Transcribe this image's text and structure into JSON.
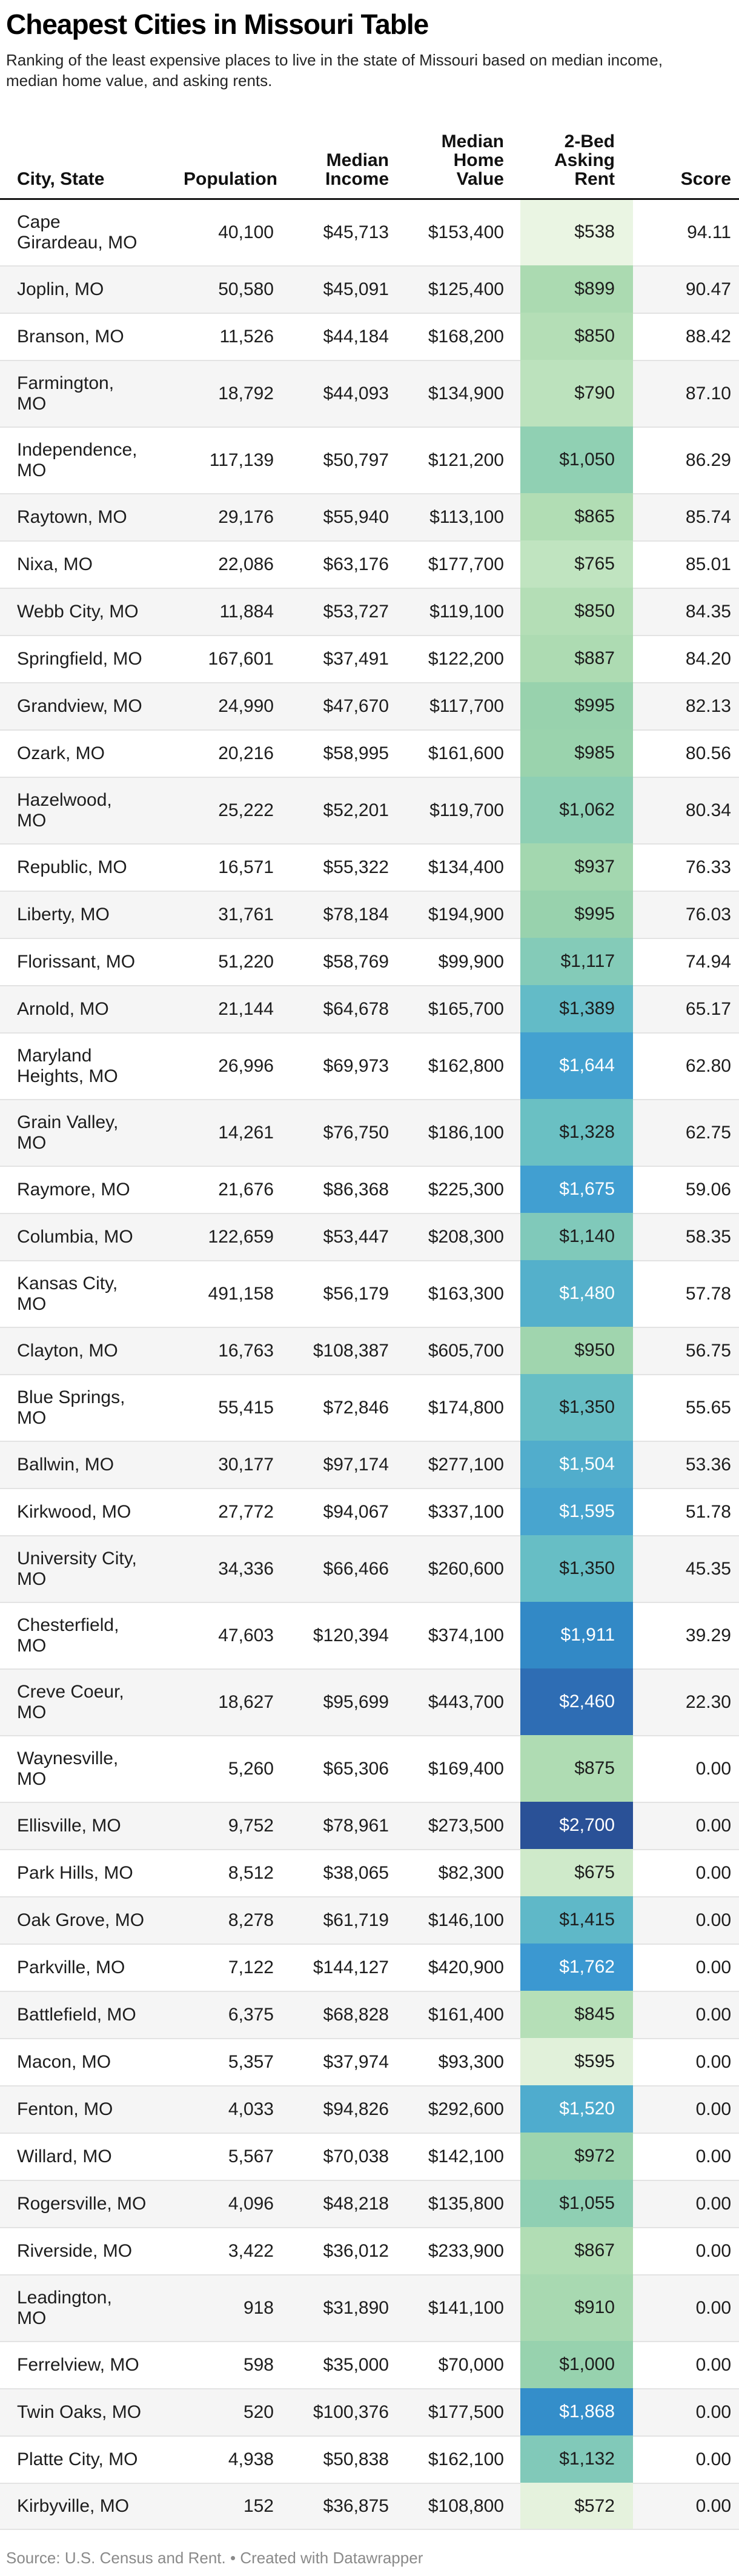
{
  "title": "Cheapest Cities in Missouri Table",
  "subtitle": "Ranking of the least expensive places to live in the state of Missouri based on median income,\nmedian home value, and asking rents.",
  "table": {
    "headers": [
      "City, State",
      "Population",
      "Median\nIncome",
      "Median\nHome\nValue",
      "2-Bed\nAsking\nRent",
      "Score"
    ]
  },
  "chart_data": {
    "type": "table",
    "columns": [
      "City, State",
      "Population",
      "Median Income",
      "Median Home Value",
      "2-Bed Asking Rent",
      "Score"
    ],
    "rent_color_scale": {
      "description": "2-Bed Asking Rent column shaded from pale green (low rent) to dark blue (high rent)",
      "low_anchor": {
        "value": "$538",
        "color": "#eaf5e3"
      },
      "mid_anchor": {
        "value": "$1,350",
        "color": "#67bec5"
      },
      "high_anchor": {
        "value": "$2,700",
        "color": "#2a5197"
      }
    },
    "rows": [
      {
        "city": "Cape\nGirardeau, MO",
        "population": "40,100",
        "median_income": "$45,713",
        "median_home_value": "$153,400",
        "rent": "$538",
        "score": "94.11",
        "rent_color": "#eaf5e3",
        "rent_text": "dark"
      },
      {
        "city": "Joplin, MO",
        "population": "50,580",
        "median_income": "$45,091",
        "median_home_value": "$125,400",
        "rent": "$899",
        "score": "90.47",
        "rent_color": "#abdab1",
        "rent_text": "dark"
      },
      {
        "city": "Branson, MO",
        "population": "11,526",
        "median_income": "$44,184",
        "median_home_value": "$168,200",
        "rent": "$850",
        "score": "88.42",
        "rent_color": "#b4deb6",
        "rent_text": "dark"
      },
      {
        "city": "Farmington,\nMO",
        "population": "18,792",
        "median_income": "$44,093",
        "median_home_value": "$134,900",
        "rent": "$790",
        "score": "87.10",
        "rent_color": "#bce2bd",
        "rent_text": "dark"
      },
      {
        "city": "Independence,\nMO",
        "population": "117,139",
        "median_income": "$50,797",
        "median_home_value": "$121,200",
        "rent": "$1,050",
        "score": "86.29",
        "rent_color": "#90d0b3",
        "rent_text": "dark"
      },
      {
        "city": "Raytown, MO",
        "population": "29,176",
        "median_income": "$55,940",
        "median_home_value": "$113,100",
        "rent": "$865",
        "score": "85.74",
        "rent_color": "#b1ddb4",
        "rent_text": "dark"
      },
      {
        "city": "Nixa, MO",
        "population": "22,086",
        "median_income": "$63,176",
        "median_home_value": "$177,700",
        "rent": "$765",
        "score": "85.01",
        "rent_color": "#c0e4c0",
        "rent_text": "dark"
      },
      {
        "city": "Webb City, MO",
        "population": "11,884",
        "median_income": "$53,727",
        "median_home_value": "$119,100",
        "rent": "$850",
        "score": "84.35",
        "rent_color": "#b4deb6",
        "rent_text": "dark"
      },
      {
        "city": "Springfield, MO",
        "population": "167,601",
        "median_income": "$37,491",
        "median_home_value": "$122,200",
        "rent": "$887",
        "score": "84.20",
        "rent_color": "#addbb2",
        "rent_text": "dark"
      },
      {
        "city": "Grandview, MO",
        "population": "24,990",
        "median_income": "$47,670",
        "median_home_value": "$117,700",
        "rent": "$995",
        "score": "82.13",
        "rent_color": "#98d2ad",
        "rent_text": "dark"
      },
      {
        "city": "Ozark, MO",
        "population": "20,216",
        "median_income": "$58,995",
        "median_home_value": "$161,600",
        "rent": "$985",
        "score": "80.56",
        "rent_color": "#9ad3ad",
        "rent_text": "dark"
      },
      {
        "city": "Hazelwood,\nMO",
        "population": "25,222",
        "median_income": "$52,201",
        "median_home_value": "$119,700",
        "rent": "$1,062",
        "score": "80.34",
        "rent_color": "#8ecfb4",
        "rent_text": "dark"
      },
      {
        "city": "Republic, MO",
        "population": "16,571",
        "median_income": "$55,322",
        "median_home_value": "$134,400",
        "rent": "$937",
        "score": "76.33",
        "rent_color": "#a3d7af",
        "rent_text": "dark"
      },
      {
        "city": "Liberty, MO",
        "population": "31,761",
        "median_income": "$78,184",
        "median_home_value": "$194,900",
        "rent": "$995",
        "score": "76.03",
        "rent_color": "#98d2ad",
        "rent_text": "dark"
      },
      {
        "city": "Florissant, MO",
        "population": "51,220",
        "median_income": "$58,769",
        "median_home_value": "$99,900",
        "rent": "$1,117",
        "score": "74.94",
        "rent_color": "#84cbb8",
        "rent_text": "dark"
      },
      {
        "city": "Arnold, MO",
        "population": "21,144",
        "median_income": "$64,678",
        "median_home_value": "$165,700",
        "rent": "$1,389",
        "score": "65.17",
        "rent_color": "#63bbc7",
        "rent_text": "dark"
      },
      {
        "city": "Maryland\nHeights, MO",
        "population": "26,996",
        "median_income": "$69,973",
        "median_home_value": "$162,800",
        "rent": "$1,644",
        "score": "62.80",
        "rent_color": "#43a1d0",
        "rent_text": "light"
      },
      {
        "city": "Grain Valley,\nMO",
        "population": "14,261",
        "median_income": "$76,750",
        "median_home_value": "$186,100",
        "rent": "$1,328",
        "score": "62.75",
        "rent_color": "#6ac0c3",
        "rent_text": "dark"
      },
      {
        "city": "Raymore, MO",
        "population": "21,676",
        "median_income": "$86,368",
        "median_home_value": "$225,300",
        "rent": "$1,675",
        "score": "59.06",
        "rent_color": "#419fd1",
        "rent_text": "light"
      },
      {
        "city": "Columbia, MO",
        "population": "122,659",
        "median_income": "$53,447",
        "median_home_value": "$208,300",
        "rent": "$1,140",
        "score": "58.35",
        "rent_color": "#80c9ba",
        "rent_text": "dark"
      },
      {
        "city": "Kansas City,\nMO",
        "population": "491,158",
        "median_income": "$56,179",
        "median_home_value": "$163,300",
        "rent": "$1,480",
        "score": "57.78",
        "rent_color": "#54b0cb",
        "rent_text": "light"
      },
      {
        "city": "Clayton, MO",
        "population": "16,763",
        "median_income": "$108,387",
        "median_home_value": "$605,700",
        "rent": "$950",
        "score": "56.75",
        "rent_color": "#a0d5ae",
        "rent_text": "dark"
      },
      {
        "city": "Blue Springs,\nMO",
        "population": "55,415",
        "median_income": "$72,846",
        "median_home_value": "$174,800",
        "rent": "$1,350",
        "score": "55.65",
        "rent_color": "#67bec5",
        "rent_text": "dark"
      },
      {
        "city": "Ballwin, MO",
        "population": "30,177",
        "median_income": "$97,174",
        "median_home_value": "$277,100",
        "rent": "$1,504",
        "score": "53.36",
        "rent_color": "#51adcc",
        "rent_text": "light"
      },
      {
        "city": "Kirkwood, MO",
        "population": "27,772",
        "median_income": "$94,067",
        "median_home_value": "$337,100",
        "rent": "$1,595",
        "score": "51.78",
        "rent_color": "#48a5cf",
        "rent_text": "light"
      },
      {
        "city": "University City,\nMO",
        "population": "34,336",
        "median_income": "$66,466",
        "median_home_value": "$260,600",
        "rent": "$1,350",
        "score": "45.35",
        "rent_color": "#67bec5",
        "rent_text": "dark"
      },
      {
        "city": "Chesterfield,\nMO",
        "population": "47,603",
        "median_income": "$120,394",
        "median_home_value": "$374,100",
        "rent": "$1,911",
        "score": "39.29",
        "rent_color": "#3289c6",
        "rent_text": "light"
      },
      {
        "city": "Creve Coeur,\nMO",
        "population": "18,627",
        "median_income": "$95,699",
        "median_home_value": "$443,700",
        "rent": "$2,460",
        "score": "22.30",
        "rent_color": "#2e6db4",
        "rent_text": "light"
      },
      {
        "city": "Waynesville,\nMO",
        "population": "5,260",
        "median_income": "$65,306",
        "median_home_value": "$169,400",
        "rent": "$875",
        "score": "0.00",
        "rent_color": "#afdcb3",
        "rent_text": "dark"
      },
      {
        "city": "Ellisville, MO",
        "population": "9,752",
        "median_income": "$78,961",
        "median_home_value": "$273,500",
        "rent": "$2,700",
        "score": "0.00",
        "rent_color": "#2a5197",
        "rent_text": "light"
      },
      {
        "city": "Park Hills, MO",
        "population": "8,512",
        "median_income": "$38,065",
        "median_home_value": "$82,300",
        "rent": "$675",
        "score": "0.00",
        "rent_color": "#cfeaca",
        "rent_text": "dark"
      },
      {
        "city": "Oak Grove, MO",
        "population": "8,278",
        "median_income": "$61,719",
        "median_home_value": "$146,100",
        "rent": "$1,415",
        "score": "0.00",
        "rent_color": "#5fb8c8",
        "rent_text": "dark"
      },
      {
        "city": "Parkville, MO",
        "population": "7,122",
        "median_income": "$144,127",
        "median_home_value": "$420,900",
        "rent": "$1,762",
        "score": "0.00",
        "rent_color": "#3b98d1",
        "rent_text": "light"
      },
      {
        "city": "Battlefield, MO",
        "population": "6,375",
        "median_income": "$68,828",
        "median_home_value": "$161,400",
        "rent": "$845",
        "score": "0.00",
        "rent_color": "#b5dfb7",
        "rent_text": "dark"
      },
      {
        "city": "Macon, MO",
        "population": "5,357",
        "median_income": "$37,974",
        "median_home_value": "$93,300",
        "rent": "$595",
        "score": "0.00",
        "rent_color": "#e1f1da",
        "rent_text": "dark"
      },
      {
        "city": "Fenton, MO",
        "population": "4,033",
        "median_income": "$94,826",
        "median_home_value": "$292,600",
        "rent": "$1,520",
        "score": "0.00",
        "rent_color": "#4facce",
        "rent_text": "light"
      },
      {
        "city": "Willard, MO",
        "population": "5,567",
        "median_income": "$70,038",
        "median_home_value": "$142,100",
        "rent": "$972",
        "score": "0.00",
        "rent_color": "#9dd4ae",
        "rent_text": "dark"
      },
      {
        "city": "Rogersville, MO",
        "population": "4,096",
        "median_income": "$48,218",
        "median_home_value": "$135,800",
        "rent": "$1,055",
        "score": "0.00",
        "rent_color": "#8fcfb3",
        "rent_text": "dark"
      },
      {
        "city": "Riverside, MO",
        "population": "3,422",
        "median_income": "$36,012",
        "median_home_value": "$233,900",
        "rent": "$867",
        "score": "0.00",
        "rent_color": "#b1ddb4",
        "rent_text": "dark"
      },
      {
        "city": "Leadington,\nMO",
        "population": "918",
        "median_income": "$31,890",
        "median_home_value": "$141,100",
        "rent": "$910",
        "score": "0.00",
        "rent_color": "#a8d9b1",
        "rent_text": "dark"
      },
      {
        "city": "Ferrelview, MO",
        "population": "598",
        "median_income": "$35,000",
        "median_home_value": "$70,000",
        "rent": "$1,000",
        "score": "0.00",
        "rent_color": "#97d2ae",
        "rent_text": "dark"
      },
      {
        "city": "Twin Oaks, MO",
        "population": "520",
        "median_income": "$100,376",
        "median_home_value": "$177,500",
        "rent": "$1,868",
        "score": "0.00",
        "rent_color": "#348eca",
        "rent_text": "light"
      },
      {
        "city": "Platte City, MO",
        "population": "4,938",
        "median_income": "$50,838",
        "median_home_value": "$162,100",
        "rent": "$1,132",
        "score": "0.00",
        "rent_color": "#81c9b9",
        "rent_text": "dark"
      },
      {
        "city": "Kirbyville, MO",
        "population": "152",
        "median_income": "$36,875",
        "median_home_value": "$108,800",
        "rent": "$572",
        "score": "0.00",
        "rent_color": "#e5f2dd",
        "rent_text": "dark"
      }
    ]
  },
  "footer": {
    "source_label": "Source: U.S. Census and Rent.",
    "separator": " • ",
    "credit": "Created with Datawrapper"
  },
  "colors": {
    "header_rule": "#161616",
    "row_alt": "#f5f5f5",
    "row_separator": "#e3e3e3",
    "text": "#1d1d1d",
    "rent_light_text": "#ffffff",
    "footer_text": "#8a8a8a"
  }
}
